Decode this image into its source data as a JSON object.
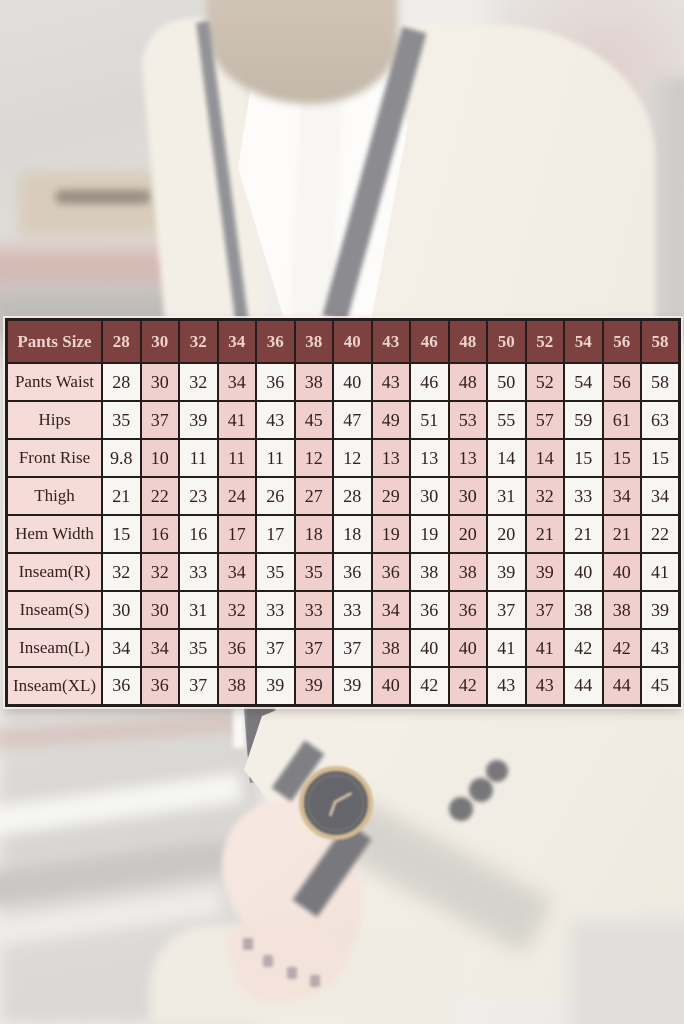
{
  "chart_data": {
    "type": "table",
    "columns": [
      "Pants Size",
      "28",
      "30",
      "32",
      "34",
      "36",
      "38",
      "40",
      "43",
      "46",
      "48",
      "50",
      "52",
      "54",
      "56",
      "58"
    ],
    "rows": [
      {
        "label": "Pants Waist",
        "values": [
          "28",
          "30",
          "32",
          "34",
          "36",
          "38",
          "40",
          "43",
          "46",
          "48",
          "50",
          "52",
          "54",
          "56",
          "58"
        ]
      },
      {
        "label": "Hips",
        "values": [
          "35",
          "37",
          "39",
          "41",
          "43",
          "45",
          "47",
          "49",
          "51",
          "53",
          "55",
          "57",
          "59",
          "61",
          "63"
        ]
      },
      {
        "label": "Front Rise",
        "values": [
          "9.8",
          "10",
          "11",
          "11",
          "11",
          "12",
          "12",
          "13",
          "13",
          "13",
          "14",
          "14",
          "15",
          "15",
          "15"
        ]
      },
      {
        "label": "Thigh",
        "values": [
          "21",
          "22",
          "23",
          "24",
          "26",
          "27",
          "28",
          "29",
          "30",
          "30",
          "31",
          "32",
          "33",
          "34",
          "34"
        ]
      },
      {
        "label": "Hem Width",
        "values": [
          "15",
          "16",
          "16",
          "17",
          "17",
          "18",
          "18",
          "19",
          "19",
          "20",
          "20",
          "21",
          "21",
          "21",
          "22"
        ]
      },
      {
        "label": "Inseam(R)",
        "values": [
          "32",
          "32",
          "33",
          "34",
          "35",
          "35",
          "36",
          "36",
          "38",
          "38",
          "39",
          "39",
          "40",
          "40",
          "41"
        ]
      },
      {
        "label": "Inseam(S)",
        "values": [
          "30",
          "30",
          "31",
          "32",
          "33",
          "33",
          "33",
          "34",
          "36",
          "36",
          "37",
          "37",
          "38",
          "38",
          "39"
        ]
      },
      {
        "label": "Inseam(L)",
        "values": [
          "34",
          "34",
          "35",
          "36",
          "37",
          "37",
          "37",
          "38",
          "40",
          "40",
          "41",
          "41",
          "42",
          "42",
          "43"
        ]
      },
      {
        "label": "Inseam(XL)",
        "values": [
          "36",
          "36",
          "37",
          "38",
          "39",
          "39",
          "39",
          "40",
          "42",
          "42",
          "43",
          "43",
          "44",
          "44",
          "45"
        ]
      }
    ],
    "layout": {
      "header_position": "top",
      "row_label_column": true,
      "striped_columns": "alternating white/pink starting white",
      "grid": true
    }
  },
  "colors": {
    "header_bg": "#7d4140",
    "header_text": "#edd2cf",
    "label_cell_bg": "#f5dcd8",
    "cell_pink": "#f0cfcc",
    "cell_white": "#f7f6f3",
    "grid_border": "#241d1c",
    "cell_text": "#33211f"
  },
  "background_photo": {
    "elements": [
      "blurred-street-scene",
      "beard",
      "white-dress-shirt",
      "black-lapel-trim",
      "cream-suit-jacket",
      "wrist-watch",
      "watch-strap",
      "tattooed-hand",
      "cuff-buttons",
      "trousers"
    ]
  }
}
